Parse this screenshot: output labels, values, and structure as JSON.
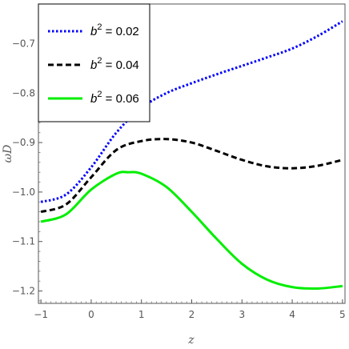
{
  "chart_data": {
    "type": "line",
    "title": "",
    "xlabel": "z",
    "ylabel": "ωD",
    "xlim": [
      -1.05,
      5.05
    ],
    "ylim": [
      -1.225,
      -0.62
    ],
    "x_ticks": [
      -1,
      0,
      1,
      2,
      3,
      4,
      5
    ],
    "x_tick_labels": [
      "−1",
      "0",
      "1",
      "2",
      "3",
      "4",
      "5"
    ],
    "y_ticks": [
      -0.7,
      -0.8,
      -0.9,
      -1.0,
      -1.1,
      -1.2
    ],
    "y_tick_labels": [
      "−0.7",
      "−0.8",
      "−0.9",
      "−1.0",
      "−1.1",
      "−1.2"
    ],
    "grid": false,
    "legend_position": "top-left",
    "series": [
      {
        "name": "b² = 0.02",
        "legend_base": "b",
        "legend_sup": "2",
        "legend_rest": " = 0.02",
        "color": "#0000ff",
        "style": "dotted",
        "x": [
          -1,
          -0.5,
          0,
          0.5,
          1,
          1.5,
          2,
          2.5,
          3,
          3.5,
          4,
          4.5,
          5
        ],
        "y": [
          -1.02,
          -1.005,
          -0.95,
          -0.88,
          -0.83,
          -0.8,
          -0.78,
          -0.762,
          -0.745,
          -0.728,
          -0.71,
          -0.685,
          -0.655
        ]
      },
      {
        "name": "b² = 0.04",
        "legend_base": "b",
        "legend_sup": "2",
        "legend_rest": " = 0.04",
        "color": "#000000",
        "style": "dashed",
        "x": [
          -1,
          -0.5,
          0,
          0.5,
          1,
          1.5,
          2,
          2.5,
          3,
          3.5,
          4,
          4.5,
          5
        ],
        "y": [
          -1.04,
          -1.025,
          -0.97,
          -0.915,
          -0.897,
          -0.893,
          -0.9,
          -0.917,
          -0.935,
          -0.948,
          -0.952,
          -0.947,
          -0.935
        ]
      },
      {
        "name": "b² = 0.06",
        "legend_base": "b",
        "legend_sup": "2",
        "legend_rest": " = 0.06",
        "color": "#00ee00",
        "style": "solid",
        "x": [
          -1,
          -0.5,
          0,
          0.5,
          0.75,
          1,
          1.5,
          2,
          2.5,
          3,
          3.5,
          4,
          4.5,
          5
        ],
        "y": [
          -1.06,
          -1.045,
          -0.995,
          -0.963,
          -0.96,
          -0.963,
          -0.99,
          -1.04,
          -1.095,
          -1.145,
          -1.177,
          -1.192,
          -1.195,
          -1.19
        ]
      }
    ]
  }
}
